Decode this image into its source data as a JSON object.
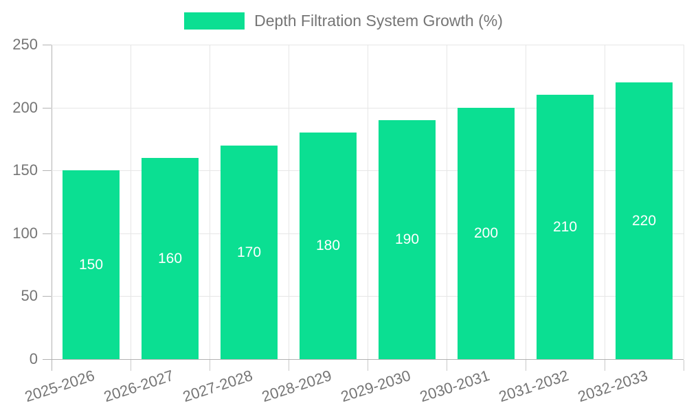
{
  "legend": {
    "label": "Depth Filtration System Growth (%)",
    "swatch_color": "#0bdf92"
  },
  "chart_data": {
    "type": "bar",
    "title": "Depth Filtration System Growth (%)",
    "categories": [
      "2025-2026",
      "2026-2027",
      "2027-2028",
      "2028-2029",
      "2029-2030",
      "2030-2031",
      "2031-2032",
      "2032-2033"
    ],
    "values": [
      150,
      160,
      170,
      180,
      190,
      200,
      210,
      220
    ],
    "value_labels": [
      "150",
      "160",
      "170",
      "180",
      "190",
      "200",
      "210",
      "220"
    ],
    "xlabel": "",
    "ylabel": "",
    "ylim": [
      0,
      250
    ],
    "yticks": [
      0,
      50,
      100,
      150,
      200,
      250
    ],
    "grid": true,
    "legend_position": "top-center",
    "bar_color": "#0bdf92",
    "value_label_color": "#ffffff",
    "axis_color": "#b3b3b3",
    "grid_color": "#e6e6e6",
    "text_color": "#757575",
    "background_color": "#ffffff"
  }
}
